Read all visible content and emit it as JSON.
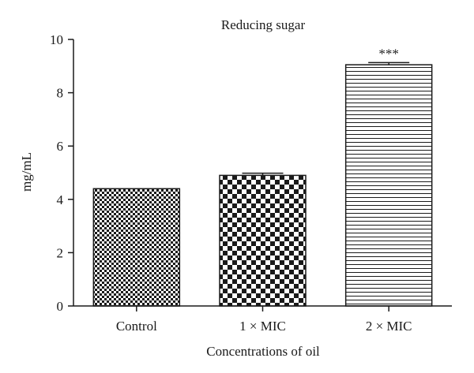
{
  "chart_data": {
    "type": "bar",
    "title": "Reducing sugar",
    "xlabel": "Concentrations of oil",
    "ylabel": "mg/mL",
    "categories": [
      "Control",
      "1 × MIC",
      "2 × MIC"
    ],
    "values": [
      4.4,
      4.9,
      9.05
    ],
    "errors": [
      0.0,
      0.08,
      0.08
    ],
    "annotations": [
      "",
      "",
      "***"
    ],
    "patterns": [
      "fine-checker",
      "coarse-checker",
      "horizontal-lines"
    ],
    "ylim": [
      0,
      10
    ],
    "yticks": [
      0,
      2,
      4,
      6,
      8,
      10
    ],
    "grid": false,
    "colors": {
      "ink": "#1a1a1a",
      "background": "#ffffff"
    }
  }
}
